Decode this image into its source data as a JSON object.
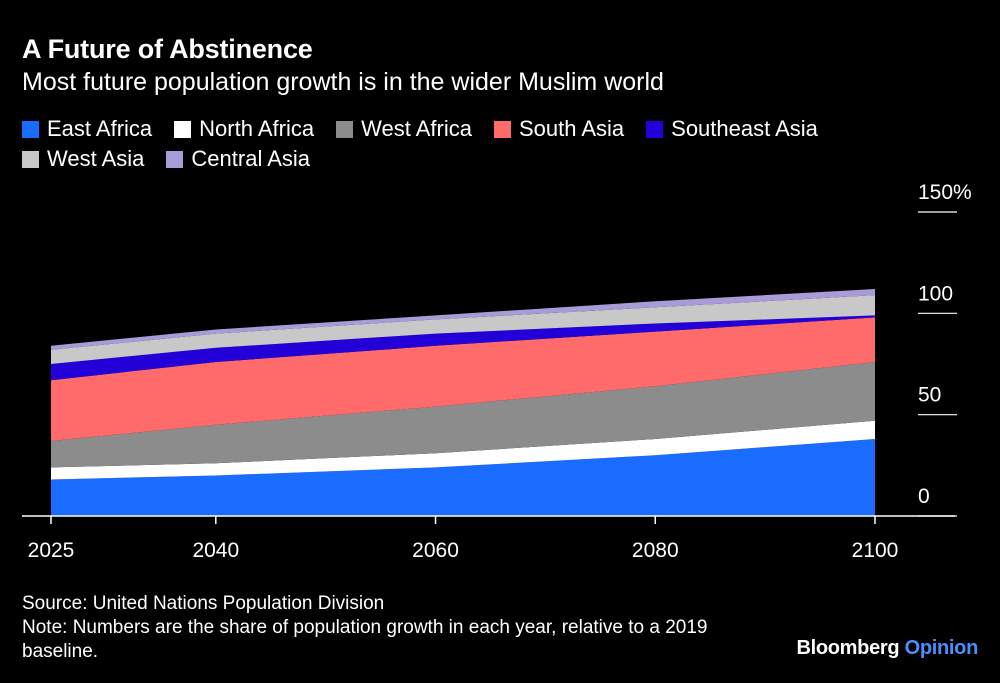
{
  "header": {
    "title": "A Future of Abstinence",
    "subtitle": "Most future population growth is in the wider Muslim world"
  },
  "footer": {
    "source": "Source: United Nations Population Division",
    "note": "Note: Numbers are the share of population growth in each year, relative to a 2019 baseline.",
    "brand_main": "Bloomberg",
    "brand_sub": "Opinion"
  },
  "chart_data": {
    "type": "area",
    "stacked": true,
    "title": "A Future of Abstinence",
    "subtitle": "Most future population growth is in the wider Muslim world",
    "xlabel": "",
    "ylabel": "",
    "x": [
      2025,
      2040,
      2060,
      2080,
      2100
    ],
    "x_ticks": [
      "2025",
      "2040",
      "2060",
      "2080",
      "2100"
    ],
    "y_ticks": [
      "0",
      "50",
      "100",
      "150%"
    ],
    "ylim": [
      0,
      150
    ],
    "xlim": [
      2025,
      2100
    ],
    "grid": false,
    "legend_position": "top",
    "series": [
      {
        "name": "East Africa",
        "color": "#1a6cff",
        "values": [
          18,
          20,
          24,
          30,
          38
        ]
      },
      {
        "name": "North Africa",
        "color": "#ffffff",
        "values": [
          6,
          6,
          7,
          8,
          9
        ]
      },
      {
        "name": "West Africa",
        "color": "#8c8c8c",
        "values": [
          13,
          19,
          23,
          26,
          29
        ]
      },
      {
        "name": "South Asia",
        "color": "#ff6b6b",
        "values": [
          30,
          31,
          30,
          27,
          22
        ]
      },
      {
        "name": "Southeast Asia",
        "color": "#2400d8",
        "values": [
          8,
          7,
          6,
          4,
          1
        ]
      },
      {
        "name": "West Asia",
        "color": "#c8c8c8",
        "values": [
          7,
          7,
          7,
          8,
          10
        ]
      },
      {
        "name": "Central Asia",
        "color": "#a99ad8",
        "values": [
          2,
          2,
          2,
          3,
          3
        ]
      }
    ]
  }
}
